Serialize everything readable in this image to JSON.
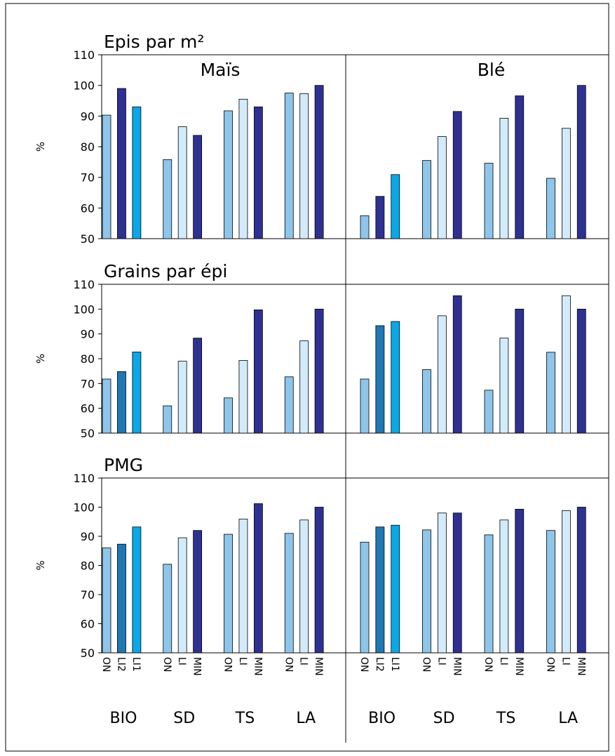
{
  "chart_data": [
    {
      "type": "bar",
      "title": "Epis par m²",
      "subtitle": "Maïs",
      "ylabel": "%",
      "ylim": [
        50,
        110
      ],
      "yticks": [
        50,
        60,
        70,
        80,
        90,
        100,
        110
      ],
      "groups": [
        {
          "values": [
            90.3,
            99,
            93
          ],
          "colors": [
            "#8ec5ea",
            "#2e3192",
            "#0aa8e8"
          ]
        },
        {
          "values": [
            75.8,
            86.5,
            83.7
          ],
          "colors": [
            "#8ec5ea",
            "#d2ebfb",
            "#2e3192"
          ]
        },
        {
          "values": [
            91.7,
            95.5,
            93
          ],
          "colors": [
            "#8ec5ea",
            "#d2ebfb",
            "#2e3192"
          ]
        },
        {
          "values": [
            97.5,
            97.3,
            100
          ],
          "colors": [
            "#8ec5ea",
            "#d2ebfb",
            "#2e3192"
          ]
        }
      ]
    },
    {
      "type": "bar",
      "subtitle": "Blé",
      "ylim": [
        50,
        110
      ],
      "groups": [
        {
          "values": [
            57.5,
            63.8,
            70.9
          ],
          "colors": [
            "#8ec5ea",
            "#2e3192",
            "#0aa8e8"
          ]
        },
        {
          "values": [
            75.5,
            83.3,
            91.5
          ],
          "colors": [
            "#8ec5ea",
            "#d2ebfb",
            "#2e3192"
          ]
        },
        {
          "values": [
            74.6,
            89.3,
            96.6
          ],
          "colors": [
            "#8ec5ea",
            "#d2ebfb",
            "#2e3192"
          ]
        },
        {
          "values": [
            69.7,
            86,
            100
          ],
          "colors": [
            "#8ec5ea",
            "#d2ebfb",
            "#2e3192"
          ]
        }
      ]
    },
    {
      "type": "bar",
      "title": "Grains par épi",
      "ylabel": "%",
      "ylim": [
        50,
        110
      ],
      "yticks": [
        50,
        60,
        70,
        80,
        90,
        100,
        110
      ],
      "groups": [
        {
          "values": [
            71.8,
            74.8,
            82.7
          ],
          "colors": [
            "#8ec5ea",
            "#1f78b4",
            "#0aa8e8"
          ]
        },
        {
          "values": [
            61,
            79,
            88.3
          ],
          "colors": [
            "#8ec5ea",
            "#d2ebfb",
            "#2e3192"
          ]
        },
        {
          "values": [
            64.2,
            79.3,
            99.7
          ],
          "colors": [
            "#8ec5ea",
            "#d2ebfb",
            "#2e3192"
          ]
        },
        {
          "values": [
            72.7,
            87.2,
            100
          ],
          "colors": [
            "#8ec5ea",
            "#d2ebfb",
            "#2e3192"
          ]
        }
      ]
    },
    {
      "type": "bar",
      "ylim": [
        50,
        110
      ],
      "groups": [
        {
          "values": [
            71.8,
            93.3,
            95
          ],
          "colors": [
            "#8ec5ea",
            "#1f78b4",
            "#0aa8e8"
          ]
        },
        {
          "values": [
            75.6,
            97.3,
            105.4
          ],
          "colors": [
            "#8ec5ea",
            "#d2ebfb",
            "#2e3192"
          ]
        },
        {
          "values": [
            67.3,
            88.3,
            100
          ],
          "colors": [
            "#8ec5ea",
            "#d2ebfb",
            "#2e3192"
          ]
        },
        {
          "values": [
            82.6,
            105.4,
            100
          ],
          "colors": [
            "#8ec5ea",
            "#d2ebfb",
            "#2e3192"
          ]
        }
      ]
    },
    {
      "type": "bar",
      "title": "PMG",
      "ylabel": "%",
      "ylim": [
        50,
        110
      ],
      "yticks": [
        50,
        60,
        70,
        80,
        90,
        100,
        110
      ],
      "groups": [
        {
          "name": "BIO",
          "categories": [
            "ON",
            "LI2",
            "LI1"
          ],
          "values": [
            86,
            87.3,
            93.2
          ],
          "colors": [
            "#8ec5ea",
            "#1f78b4",
            "#0aa8e8"
          ]
        },
        {
          "name": "SD",
          "categories": [
            "ON",
            "LI",
            "MIN"
          ],
          "values": [
            80.4,
            89.5,
            92
          ],
          "colors": [
            "#8ec5ea",
            "#d2ebfb",
            "#2e3192"
          ]
        },
        {
          "name": "TS",
          "categories": [
            "ON",
            "LI",
            "MIN"
          ],
          "values": [
            90.7,
            95.9,
            101.2
          ],
          "colors": [
            "#8ec5ea",
            "#d2ebfb",
            "#2e3192"
          ]
        },
        {
          "name": "LA",
          "categories": [
            "ON",
            "LI",
            "MIN"
          ],
          "values": [
            91,
            95.6,
            100
          ],
          "colors": [
            "#8ec5ea",
            "#d2ebfb",
            "#2e3192"
          ]
        }
      ]
    },
    {
      "type": "bar",
      "ylim": [
        50,
        110
      ],
      "groups": [
        {
          "name": "BIO",
          "categories": [
            "ON",
            "LI2",
            "LI1"
          ],
          "values": [
            88,
            93.2,
            93.8
          ],
          "colors": [
            "#8ec5ea",
            "#1f78b4",
            "#0aa8e8"
          ]
        },
        {
          "name": "SD",
          "categories": [
            "ON",
            "LI",
            "MIN"
          ],
          "values": [
            92.2,
            98,
            98
          ],
          "colors": [
            "#8ec5ea",
            "#d2ebfb",
            "#2e3192"
          ]
        },
        {
          "name": "TS",
          "categories": [
            "ON",
            "LI",
            "MIN"
          ],
          "values": [
            90.5,
            95.6,
            99.3
          ],
          "colors": [
            "#8ec5ea",
            "#d2ebfb",
            "#2e3192"
          ]
        },
        {
          "name": "LA",
          "categories": [
            "ON",
            "LI",
            "MIN"
          ],
          "values": [
            92,
            98.8,
            100
          ],
          "colors": [
            "#8ec5ea",
            "#d2ebfb",
            "#2e3192"
          ]
        }
      ]
    }
  ]
}
